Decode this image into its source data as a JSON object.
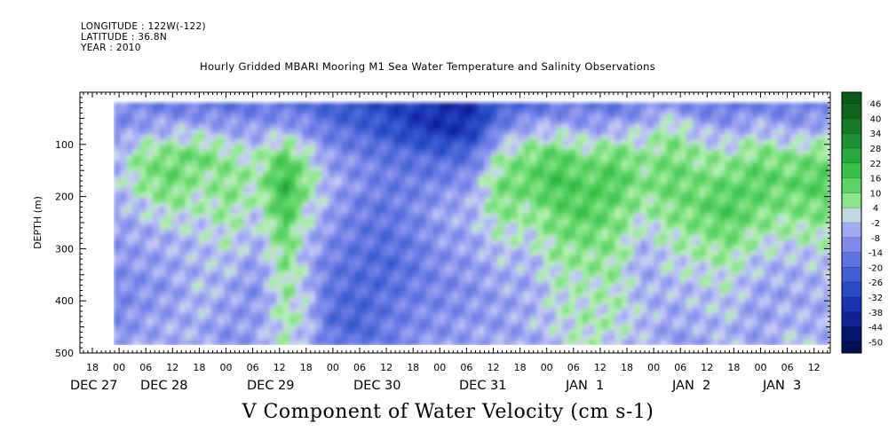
{
  "meta": {
    "longitude": "LONGITUDE : 122W(-122)",
    "latitude": "LATITUDE : 36.8N",
    "year": "YEAR : 2010"
  },
  "title": "Hourly Gridded MBARI Mooring M1 Sea Water Temperature and Salinity Observations",
  "bottom_title": "V Component of Water Velocity (cm s-1)",
  "chart_data": {
    "type": "heatmap",
    "title": "Hourly Gridded MBARI Mooring M1 Sea Water Temperature and Salinity Observations",
    "colorbar_label": "V Component of Water Velocity (cm s-1)",
    "ylabel": "DEPTH (m)",
    "ylim": [
      500,
      0
    ],
    "y_ticks": [
      100,
      200,
      300,
      400,
      500
    ],
    "y_tick_labels": [
      "100",
      "200",
      "300",
      "400",
      "500"
    ],
    "x_hour_labels": [
      "18",
      "00",
      "06",
      "12",
      "18",
      "00",
      "06",
      "12",
      "18",
      "00",
      "06",
      "12",
      "18",
      "00",
      "06",
      "12",
      "18",
      "00",
      "06",
      "12",
      "18",
      "00",
      "06",
      "12",
      "18",
      "00",
      "06",
      "12"
    ],
    "x_date_labels": [
      "DEC 27",
      "DEC 28",
      "DEC 29",
      "DEC 30",
      "DEC 31",
      "JAN  1",
      "JAN  2",
      "JAN  3"
    ],
    "colorbar_levels": [
      46,
      40,
      34,
      28,
      22,
      16,
      10,
      4,
      -2,
      -8,
      -14,
      -20,
      -26,
      -32,
      -38,
      -44,
      -50
    ],
    "colors": {
      "strong_negative": "#00105a",
      "negative": "#2f55cc",
      "weak_negative": "#9aa3f0",
      "near_zero": "#c8ccf6",
      "weak_positive": "#a6e89a",
      "positive": "#3cc84a",
      "strong_positive": "#0b5a1c"
    },
    "columns": [
      {
        "x": 0.0,
        "v": [
          -12,
          -10,
          -6,
          -4,
          -6,
          -8,
          -10,
          -12,
          -12,
          -10
        ]
      },
      {
        "x": 0.04,
        "v": [
          -14,
          -6,
          8,
          6,
          -2,
          -6,
          -8,
          -10,
          -8,
          -6
        ]
      },
      {
        "x": 0.08,
        "v": [
          -16,
          -4,
          10,
          12,
          4,
          -4,
          -6,
          -8,
          -6,
          -4
        ]
      },
      {
        "x": 0.12,
        "v": [
          -18,
          -2,
          12,
          4,
          2,
          -2,
          -4,
          -2,
          -4,
          -6
        ]
      },
      {
        "x": 0.16,
        "v": [
          -18,
          -6,
          6,
          8,
          6,
          2,
          -2,
          -6,
          -8,
          -10
        ]
      },
      {
        "x": 0.2,
        "v": [
          -16,
          -8,
          2,
          4,
          0,
          -4,
          -8,
          -10,
          -8,
          -6
        ]
      },
      {
        "x": 0.24,
        "v": [
          -20,
          -4,
          14,
          22,
          18,
          12,
          8,
          6,
          4,
          2
        ]
      },
      {
        "x": 0.27,
        "v": [
          -18,
          -10,
          4,
          8,
          2,
          -2,
          -4,
          -2,
          0,
          -4
        ]
      },
      {
        "x": 0.3,
        "v": [
          -24,
          -16,
          -8,
          -4,
          -6,
          -10,
          -14,
          -16,
          -18,
          -14
        ]
      },
      {
        "x": 0.34,
        "v": [
          -28,
          -20,
          -12,
          -10,
          -14,
          -16,
          -18,
          -20,
          -22,
          -18
        ]
      },
      {
        "x": 0.38,
        "v": [
          -30,
          -26,
          -16,
          -14,
          -16,
          -18,
          -20,
          -18,
          -16,
          -14
        ]
      },
      {
        "x": 0.42,
        "v": [
          -34,
          -32,
          -18,
          -14,
          -12,
          -14,
          -16,
          -14,
          -12,
          -10
        ]
      },
      {
        "x": 0.46,
        "v": [
          -38,
          -36,
          -20,
          -12,
          -6,
          -8,
          -10,
          -12,
          -10,
          -8
        ]
      },
      {
        "x": 0.5,
        "v": [
          -36,
          -34,
          -18,
          -8,
          -4,
          -6,
          -8,
          -10,
          -8,
          -6
        ]
      },
      {
        "x": 0.54,
        "v": [
          -26,
          -12,
          4,
          10,
          8,
          2,
          -4,
          -6,
          -8,
          -6
        ]
      },
      {
        "x": 0.58,
        "v": [
          -20,
          -4,
          10,
          12,
          6,
          0,
          -4,
          -6,
          -4,
          -6
        ]
      },
      {
        "x": 0.62,
        "v": [
          -18,
          -2,
          14,
          18,
          12,
          8,
          4,
          2,
          0,
          -2
        ]
      },
      {
        "x": 0.66,
        "v": [
          -16,
          -6,
          8,
          14,
          16,
          10,
          6,
          2,
          4,
          2
        ]
      },
      {
        "x": 0.7,
        "v": [
          -18,
          -4,
          12,
          16,
          10,
          8,
          6,
          4,
          2,
          0
        ]
      },
      {
        "x": 0.74,
        "v": [
          -14,
          -2,
          6,
          8,
          4,
          -2,
          -6,
          -4,
          -2,
          -4
        ]
      },
      {
        "x": 0.78,
        "v": [
          -10,
          6,
          10,
          12,
          8,
          4,
          0,
          -4,
          -6,
          -8
        ]
      },
      {
        "x": 0.82,
        "v": [
          -16,
          -4,
          6,
          10,
          12,
          6,
          2,
          -2,
          -4,
          -6
        ]
      },
      {
        "x": 0.86,
        "v": [
          -18,
          -6,
          4,
          12,
          16,
          10,
          4,
          0,
          -2,
          -4
        ]
      },
      {
        "x": 0.9,
        "v": [
          -14,
          -2,
          10,
          14,
          10,
          4,
          -2,
          -6,
          -8,
          -6
        ]
      },
      {
        "x": 0.94,
        "v": [
          -16,
          -6,
          8,
          12,
          8,
          2,
          -4,
          -6,
          -4,
          -2
        ]
      },
      {
        "x": 1.0,
        "v": [
          -14,
          -4,
          10,
          16,
          10,
          4,
          -2,
          -4,
          -6,
          -4
        ]
      }
    ]
  }
}
